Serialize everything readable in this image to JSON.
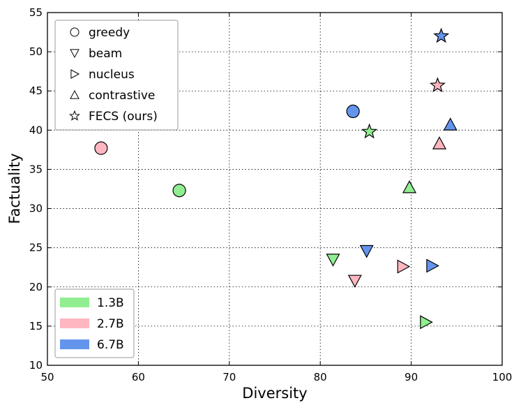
{
  "chart_data": {
    "type": "scatter",
    "xlabel": "Diversity",
    "ylabel": "Factuality",
    "xlim": [
      50,
      100
    ],
    "ylim": [
      10,
      55
    ],
    "xticks": [
      50,
      60,
      70,
      80,
      90,
      100
    ],
    "yticks": [
      10,
      15,
      20,
      25,
      30,
      35,
      40,
      45,
      50,
      55
    ],
    "grid": true,
    "grid_style": "dotted",
    "colors": {
      "1.3B": "#90ee90",
      "2.7B": "#ffb6c1",
      "6.7B": "#6495ed"
    },
    "marker_legend": {
      "placement": "top-left",
      "entries": [
        {
          "marker": "circle",
          "label": "greedy"
        },
        {
          "marker": "triangle-down",
          "label": "beam"
        },
        {
          "marker": "triangle-right",
          "label": "nucleus"
        },
        {
          "marker": "triangle-up",
          "label": "contrastive"
        },
        {
          "marker": "star",
          "label": "FECS (ours)"
        }
      ]
    },
    "color_legend": {
      "placement": "bottom-left",
      "entries": [
        {
          "size": "1.3B",
          "label": "1.3B"
        },
        {
          "size": "2.7B",
          "label": "2.7B"
        },
        {
          "size": "6.7B",
          "label": "6.7B"
        }
      ]
    },
    "points": [
      {
        "method": "greedy",
        "size": "2.7B",
        "marker": "circle",
        "x": 55.9,
        "y": 37.7
      },
      {
        "method": "greedy",
        "size": "1.3B",
        "marker": "circle",
        "x": 64.5,
        "y": 32.3
      },
      {
        "method": "greedy",
        "size": "6.7B",
        "marker": "circle",
        "x": 83.6,
        "y": 42.4
      },
      {
        "method": "beam",
        "size": "1.3B",
        "marker": "triangle-down",
        "x": 81.4,
        "y": 23.5
      },
      {
        "method": "beam",
        "size": "2.7B",
        "marker": "triangle-down",
        "x": 83.8,
        "y": 20.8
      },
      {
        "method": "beam",
        "size": "6.7B",
        "marker": "triangle-down",
        "x": 85.1,
        "y": 24.6
      },
      {
        "method": "nucleus",
        "size": "2.7B",
        "marker": "triangle-right",
        "x": 89.1,
        "y": 22.6
      },
      {
        "method": "nucleus",
        "size": "6.7B",
        "marker": "triangle-right",
        "x": 92.3,
        "y": 22.7
      },
      {
        "method": "nucleus",
        "size": "1.3B",
        "marker": "triangle-right",
        "x": 91.6,
        "y": 15.5
      },
      {
        "method": "contrastive",
        "size": "1.3B",
        "marker": "triangle-up",
        "x": 89.8,
        "y": 32.7
      },
      {
        "method": "contrastive",
        "size": "2.7B",
        "marker": "triangle-up",
        "x": 93.1,
        "y": 38.3
      },
      {
        "method": "contrastive",
        "size": "6.7B",
        "marker": "triangle-up",
        "x": 94.3,
        "y": 40.7
      },
      {
        "method": "FECS (ours)",
        "size": "1.3B",
        "marker": "star",
        "x": 85.4,
        "y": 39.8
      },
      {
        "method": "FECS (ours)",
        "size": "2.7B",
        "marker": "star",
        "x": 92.9,
        "y": 45.7
      },
      {
        "method": "FECS (ours)",
        "size": "6.7B",
        "marker": "star",
        "x": 93.3,
        "y": 52.0
      }
    ]
  }
}
